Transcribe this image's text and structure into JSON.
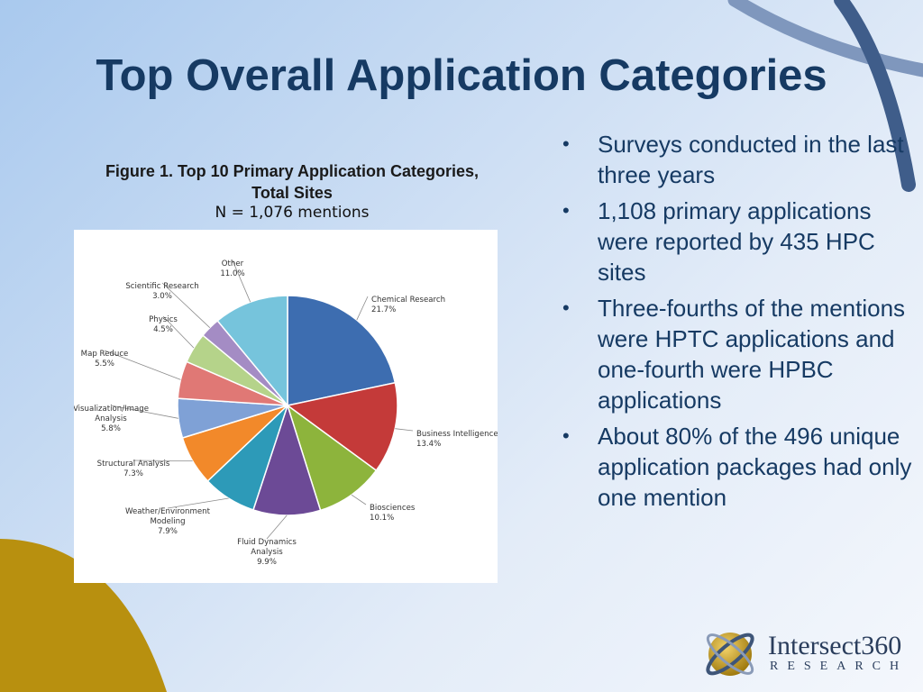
{
  "slide": {
    "title": "Top Overall Application Categories",
    "figure_title": "Figure 1. Top 10 Primary Application Categories, Total Sites",
    "figure_n": "N = 1,076 mentions",
    "bullets": [
      "Surveys conducted in the last three years",
      "1,108 primary applications were reported by 435 HPC sites",
      "Three-fourths of the mentions were HPTC applications and one-fourth were HPBC applications",
      "About 80% of the 496 unique application packages had only one mention"
    ],
    "logo": {
      "name": "Intersect360",
      "sub": "RESEARCH"
    },
    "colors": {
      "title": "#163a63",
      "background": "#c9dcf3",
      "accent_gold": "#b8900f",
      "accent_blue": "#3a5a8c"
    }
  },
  "chart_data": {
    "type": "pie",
    "start": "12 o'clock",
    "direction": "clockwise",
    "slices": [
      {
        "label": "Chemical Research",
        "value": 21.7,
        "display": "21.7%",
        "color": "#3d6db0"
      },
      {
        "label": "Business Intelligence",
        "value": 13.4,
        "display": "13.4%",
        "color": "#c43a39"
      },
      {
        "label": "Biosciences",
        "value": 10.1,
        "display": "10.1%",
        "color": "#8db43c"
      },
      {
        "label": "Fluid Dynamics Analysis",
        "value": 9.9,
        "display": "9.9%",
        "color": "#6c4a96"
      },
      {
        "label": "Weather/Environment Modeling",
        "value": 7.9,
        "display": "7.9%",
        "color": "#2d9ab8"
      },
      {
        "label": "Structural Analysis",
        "value": 7.3,
        "display": "7.3%",
        "color": "#f2892a"
      },
      {
        "label": "Visualization/Image Analysis",
        "value": 5.8,
        "display": "5.8%",
        "color": "#7fa1d6"
      },
      {
        "label": "Map Reduce",
        "value": 5.5,
        "display": "5.5%",
        "color": "#e07875"
      },
      {
        "label": "Physics",
        "value": 4.5,
        "display": "4.5%",
        "color": "#b5d38a"
      },
      {
        "label": "Scientific Research",
        "value": 3.0,
        "display": "3.0%",
        "color": "#a48cc4"
      },
      {
        "label": "Other",
        "value": 11.0,
        "display": "11.0%",
        "color": "#76c4dc"
      }
    ]
  }
}
